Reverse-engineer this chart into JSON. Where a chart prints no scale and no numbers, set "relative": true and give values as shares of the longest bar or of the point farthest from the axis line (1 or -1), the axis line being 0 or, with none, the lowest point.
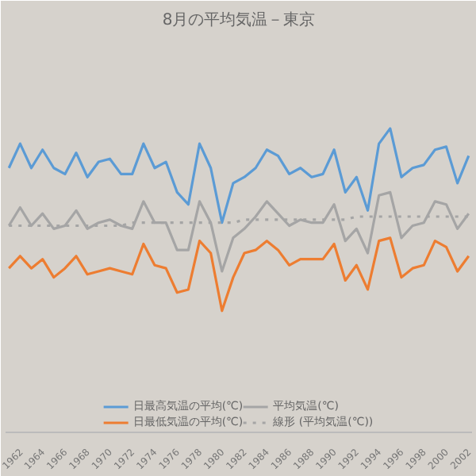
{
  "chart_data": {
    "type": "line",
    "title": "8月の平均気温－東京",
    "relative": true,
    "legend": "bottom",
    "marker": "none",
    "categories": [
      null,
      "1962",
      null,
      "1964",
      null,
      "1966",
      null,
      "1968",
      null,
      "1970",
      null,
      "1972",
      null,
      "1974",
      null,
      "1976",
      null,
      "1978",
      null,
      "1980",
      null,
      "1982",
      null,
      "1984",
      null,
      "1986",
      null,
      "1988",
      null,
      "1990",
      null,
      "1992",
      null,
      "1994",
      null,
      "1996",
      null,
      "1998",
      null,
      "2000",
      null,
      "2002"
    ],
    "series": [
      {
        "name": "日最高気温の平均(℃)",
        "color": "#5b9bd5",
        "values": [
          0.87,
          0.95,
          0.87,
          0.93,
          0.87,
          0.85,
          0.92,
          0.84,
          0.89,
          0.9,
          0.85,
          0.85,
          0.95,
          0.87,
          0.89,
          0.79,
          0.75,
          0.95,
          0.87,
          0.69,
          0.82,
          0.84,
          0.87,
          0.93,
          0.91,
          0.85,
          0.87,
          0.84,
          0.85,
          0.93,
          0.79,
          0.84,
          0.73,
          0.95,
          1,
          0.84,
          0.87,
          0.88,
          0.93,
          0.94,
          0.82,
          0.91
        ]
      },
      {
        "name": "日最低気温の平均(℃)",
        "color": "#ed7d31",
        "values": [
          0.54,
          0.58,
          0.54,
          0.57,
          0.51,
          0.54,
          0.58,
          0.52,
          0.53,
          0.54,
          0.53,
          0.52,
          0.62,
          0.55,
          0.54,
          0.46,
          0.47,
          0.63,
          0.59,
          0.4,
          0.51,
          0.59,
          0.6,
          0.63,
          0.6,
          0.55,
          0.57,
          0.57,
          0.57,
          0.62,
          0.5,
          0.55,
          0.47,
          0.63,
          0.64,
          0.51,
          0.54,
          0.55,
          0.63,
          0.61,
          0.53,
          0.58
        ]
      },
      {
        "name": "平均気温(℃)",
        "color": "#a5a5a5",
        "values": [
          0.68,
          0.74,
          0.68,
          0.72,
          0.67,
          0.68,
          0.73,
          0.67,
          0.69,
          0.7,
          0.68,
          0.67,
          0.76,
          0.69,
          0.69,
          0.6,
          0.6,
          0.76,
          0.69,
          0.53,
          0.64,
          0.67,
          0.71,
          0.76,
          0.72,
          0.68,
          0.7,
          0.69,
          0.69,
          0.75,
          0.63,
          0.67,
          0.59,
          0.78,
          0.79,
          0.64,
          0.68,
          0.69,
          0.76,
          0.75,
          0.67,
          0.72
        ]
      },
      {
        "name": "線形 (平均気温(℃))",
        "type": "line",
        "line_style": "dotted",
        "color": "#a5a5a5",
        "values": [
          0.68,
          0.68,
          0.68,
          0.68,
          0.68,
          0.68,
          0.68,
          0.68,
          0.68,
          0.68,
          0.68,
          0.69,
          0.69,
          0.69,
          0.69,
          0.69,
          0.69,
          0.69,
          0.69,
          0.69,
          0.69,
          0.7,
          0.7,
          0.7,
          0.7,
          0.7,
          0.7,
          0.7,
          0.7,
          0.7,
          0.7,
          0.71,
          0.71,
          0.71,
          0.71,
          0.71,
          0.71,
          0.71,
          0.71,
          0.71,
          0.71,
          0.71
        ]
      }
    ]
  }
}
